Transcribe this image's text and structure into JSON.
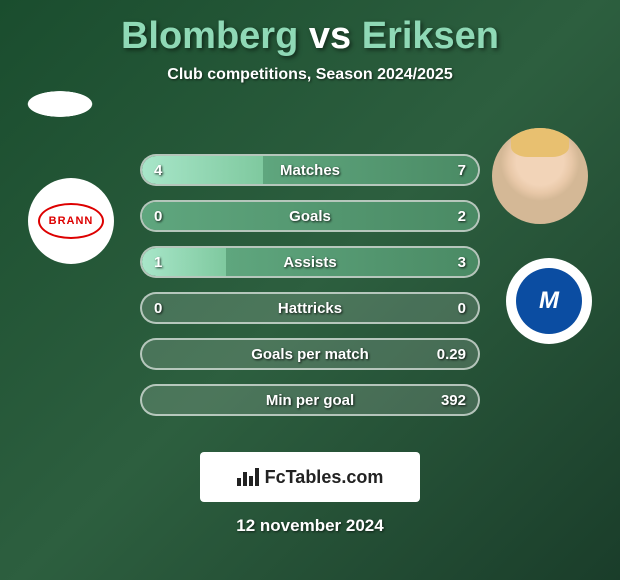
{
  "title": {
    "player1": "Blomberg",
    "vs": "vs",
    "player2": "Eriksen",
    "player1_color": "#8fd9b6",
    "vs_color": "#ffffff",
    "player2_color": "#8fd9b6"
  },
  "subtitle": "Club competitions, Season 2024/2025",
  "stats": [
    {
      "label": "Matches",
      "left_value": "4",
      "right_value": "7",
      "left_pct": 36,
      "right_pct": 64
    },
    {
      "label": "Goals",
      "left_value": "0",
      "right_value": "2",
      "left_pct": 0,
      "right_pct": 100
    },
    {
      "label": "Assists",
      "left_value": "1",
      "right_value": "3",
      "left_pct": 25,
      "right_pct": 75
    },
    {
      "label": "Hattricks",
      "left_value": "0",
      "right_value": "0",
      "left_pct": 0,
      "right_pct": 0
    },
    {
      "label": "Goals per match",
      "left_value": "",
      "right_value": "0.29",
      "left_pct": 0,
      "right_pct": 0
    },
    {
      "label": "Min per goal",
      "left_value": "",
      "right_value": "392",
      "left_pct": 0,
      "right_pct": 0
    }
  ],
  "clubs": {
    "left": {
      "name": "BRANN",
      "color": "#d00"
    },
    "right": {
      "name": "M",
      "color": "#0b4da2"
    }
  },
  "branding": "FcTables.com",
  "date": "12 november 2024",
  "styling": {
    "background_gradient": [
      "#1a4d2e",
      "#2d5f3f",
      "#1a3d2a"
    ],
    "bar_border_color": "rgba(255,255,255,0.6)",
    "bar_bg_color": "rgba(255,255,255,0.15)",
    "bar_left_gradient": [
      "#a8e6c9",
      "#7fc99f"
    ],
    "bar_right_gradient": [
      "#5fa67e",
      "#4a8a64"
    ],
    "text_color": "#ffffff",
    "title_fontsize": 38,
    "subtitle_fontsize": 16,
    "stat_fontsize": 15,
    "date_fontsize": 17
  }
}
